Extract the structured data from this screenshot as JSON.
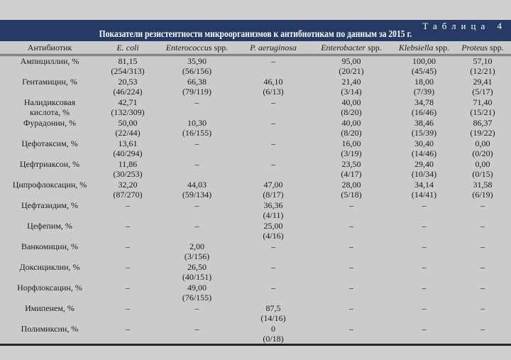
{
  "table_number": "Таблица 4",
  "title": "Показатели резистентности микроорганизмов к антибиотикам по данным за 2015 г.",
  "columns": [
    {
      "italic": "",
      "plain": "Антибиотик"
    },
    {
      "italic": "E. coli",
      "plain": ""
    },
    {
      "italic": "Enterococcus",
      "plain": " spp."
    },
    {
      "italic": "P. aeruginosa",
      "plain": ""
    },
    {
      "italic": "Enterobacter",
      "plain": " spp."
    },
    {
      "italic": "Klebsiella",
      "plain": " spp."
    },
    {
      "italic": "Proteus",
      "plain": " spp."
    }
  ],
  "rows": [
    {
      "name": [
        "Ампициллин, %"
      ],
      "cells": [
        [
          "81,15",
          "(254/313)"
        ],
        [
          "35,90",
          "(56/156)"
        ],
        [
          "–"
        ],
        [
          "95,00",
          "(20/21)"
        ],
        [
          "100,00",
          "(45/45)"
        ],
        [
          "57,10",
          "(12/21)"
        ]
      ]
    },
    {
      "name": [
        "Гентамицин, %"
      ],
      "cells": [
        [
          "20,53",
          "(46/224)"
        ],
        [
          "66,38",
          "(79/119)"
        ],
        [
          "46,10",
          "(6/13)"
        ],
        [
          "21,40",
          "(3/14)"
        ],
        [
          "18,00",
          "(7/39)"
        ],
        [
          "29,41",
          "(5/17)"
        ]
      ]
    },
    {
      "name": [
        "Налидиксовая",
        "кислота, %"
      ],
      "cells": [
        [
          "42,71",
          "(132/309)"
        ],
        [
          "–"
        ],
        [
          "–"
        ],
        [
          "40,00",
          "(8/20)"
        ],
        [
          "34,78",
          "(16/46)"
        ],
        [
          "71,40",
          "(15/21)"
        ]
      ]
    },
    {
      "name": [
        "Фурадонин, %"
      ],
      "cells": [
        [
          "50,00",
          "(22/44)"
        ],
        [
          "10,30",
          "(16/155)"
        ],
        [
          "–"
        ],
        [
          "40,00",
          "(8/20)"
        ],
        [
          "38,46",
          "(15/39)"
        ],
        [
          "86,37",
          "(19/22)"
        ]
      ]
    },
    {
      "name": [
        "Цефотаксим, %"
      ],
      "cells": [
        [
          "13,61",
          "(40/294)"
        ],
        [
          "–"
        ],
        [
          "–"
        ],
        [
          "16,00",
          "(3/19)"
        ],
        [
          "30,40",
          "(14/46)"
        ],
        [
          "0,00",
          "(0/20)"
        ]
      ]
    },
    {
      "name": [
        "Цефтриаксон, %"
      ],
      "cells": [
        [
          "11,86",
          "(30/253)"
        ],
        [
          "–"
        ],
        [
          "–"
        ],
        [
          "23,50",
          "(4/17)"
        ],
        [
          "29,40",
          "(10/34)"
        ],
        [
          "0,00",
          "(0/15)"
        ]
      ]
    },
    {
      "name": [
        "Ципрофлоксацин, %"
      ],
      "cells": [
        [
          "32,20",
          "(87/270)"
        ],
        [
          "44,03",
          "(59/134)"
        ],
        [
          "47,00",
          "(8/17)"
        ],
        [
          "28,00",
          "(5/18)"
        ],
        [
          "34,14",
          "(14/41)"
        ],
        [
          "31,58",
          "(6/19)"
        ]
      ]
    },
    {
      "name": [
        "Цефтазидим, %"
      ],
      "cells": [
        [
          "–"
        ],
        [
          "–"
        ],
        [
          "36,36",
          "(4/11)"
        ],
        [
          "–"
        ],
        [
          "–"
        ],
        [
          "–"
        ]
      ]
    },
    {
      "name": [
        "Цефепим, %"
      ],
      "cells": [
        [
          "–"
        ],
        [
          "–"
        ],
        [
          "25,00",
          "(4/16)"
        ],
        [
          "–"
        ],
        [
          "–"
        ],
        [
          "–"
        ]
      ]
    },
    {
      "name": [
        "Ванкомицин, %"
      ],
      "cells": [
        [
          "–"
        ],
        [
          "2,00",
          "(3/156)"
        ],
        [
          "–"
        ],
        [
          "–"
        ],
        [
          "–"
        ],
        [
          "–"
        ]
      ]
    },
    {
      "name": [
        "Доксициклин, %"
      ],
      "cells": [
        [
          "–"
        ],
        [
          "26,50",
          "(40/151)"
        ],
        [
          "–"
        ],
        [
          "–"
        ],
        [
          "–"
        ],
        [
          "–"
        ]
      ]
    },
    {
      "name": [
        "Норфлоксацин, %"
      ],
      "cells": [
        [
          "–"
        ],
        [
          "49,00",
          "(76/155)"
        ],
        [
          "–"
        ],
        [
          "–"
        ],
        [
          "–"
        ],
        [
          "–"
        ]
      ]
    },
    {
      "name": [
        "Имипенем, %"
      ],
      "cells": [
        [
          "–"
        ],
        [
          "–"
        ],
        [
          "87,5",
          "(14/16)"
        ],
        [
          "–"
        ],
        [
          "–"
        ],
        [
          "–"
        ]
      ]
    },
    {
      "name": [
        "Полимиксин, %"
      ],
      "cells": [
        [
          "–"
        ],
        [
          "–"
        ],
        [
          "0",
          "(0/18)"
        ],
        [
          "–"
        ],
        [
          "–"
        ],
        [
          "–"
        ]
      ]
    }
  ]
}
